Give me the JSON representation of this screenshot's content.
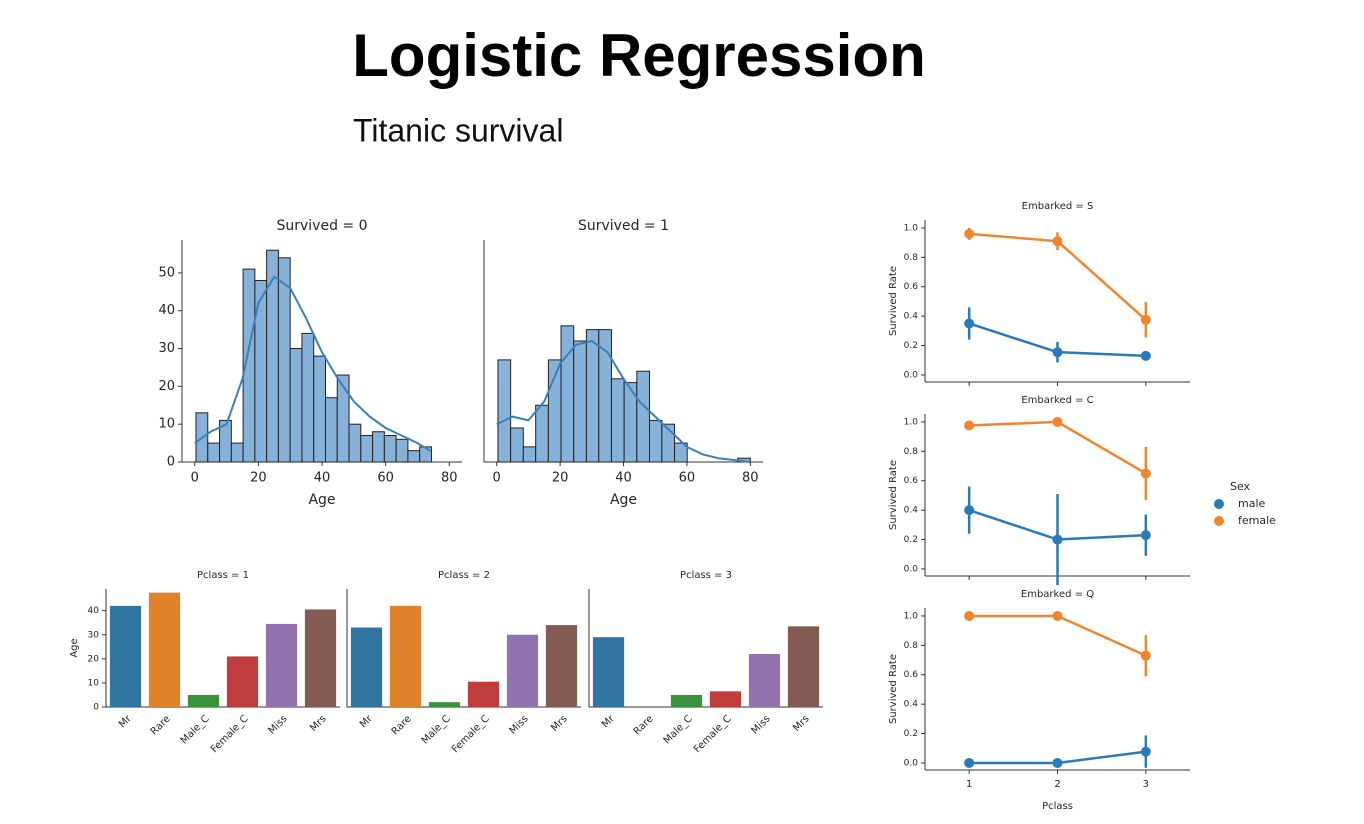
{
  "title": "Logistic Regression",
  "subtitle": "Titanic survival",
  "chart_data": [
    {
      "type": "histogram",
      "title": "Survived = 0",
      "x_label": "Age",
      "color": "#86b2d9",
      "line_color": "#3b80b9",
      "bins": [
        0.4,
        4.1,
        7.8,
        11.5,
        15.2,
        18.9,
        22.6,
        26.3,
        30.0,
        33.7,
        37.4,
        41.1,
        44.8,
        48.5,
        52.2,
        55.9,
        59.6,
        63.3,
        67.0,
        70.7,
        74.4
      ],
      "counts": [
        13,
        5,
        11,
        5,
        51,
        48,
        56,
        54,
        30,
        34,
        28,
        17,
        23,
        10,
        7,
        8,
        7,
        6,
        3,
        4
      ],
      "kde": {
        "x": [
          0,
          5,
          10,
          15,
          20,
          25,
          30,
          35,
          40,
          45,
          50,
          55,
          60,
          65,
          70,
          74
        ],
        "y": [
          5,
          8,
          10,
          22,
          42,
          49,
          46,
          38,
          29,
          22,
          16,
          12,
          9,
          7,
          5,
          3
        ]
      },
      "xlim": [
        -4,
        84
      ],
      "ylim": [
        0,
        58.7
      ],
      "xticks": [
        0,
        20,
        40,
        60,
        80
      ],
      "yticks": [
        0,
        10,
        20,
        30,
        40,
        50
      ]
    },
    {
      "type": "histogram",
      "title": "Survived = 1",
      "x_label": "Age",
      "color": "#86b2d9",
      "line_color": "#3b80b9",
      "bins": [
        0.4,
        4.4,
        8.4,
        12.3,
        16.3,
        20.3,
        24.3,
        28.3,
        32.2,
        36.2,
        40.2,
        44.2,
        48.2,
        52.1,
        56.1,
        60.1,
        64.1,
        68.1,
        72.0,
        76.0,
        80.0
      ],
      "counts": [
        27,
        9,
        4,
        15,
        27,
        36,
        32,
        35,
        35,
        22,
        21,
        24,
        11,
        10,
        5,
        0,
        0,
        0,
        0,
        1
      ],
      "kde": {
        "x": [
          0,
          5,
          10,
          15,
          20,
          25,
          30,
          35,
          40,
          45,
          50,
          55,
          60,
          65,
          70,
          80
        ],
        "y": [
          10,
          12,
          11,
          16,
          26,
          31,
          32,
          29,
          22,
          16,
          12,
          8,
          4,
          2,
          1,
          0
        ]
      },
      "xlim": [
        -4,
        84
      ],
      "ylim": [
        0,
        58.7
      ],
      "xticks": [
        0,
        20,
        40,
        60,
        80
      ]
    },
    {
      "type": "bar",
      "title": "Pclass = 1",
      "y_label": "Age",
      "categories": [
        "Mr",
        "Rare",
        "Male_C",
        "Female_C",
        "Miss",
        "Mrs"
      ],
      "colors": [
        "#3274a1",
        "#e1812c",
        "#3a923a",
        "#c03d3e",
        "#9372b2",
        "#845b53"
      ],
      "values": [
        42,
        47.5,
        5,
        21,
        34.5,
        40.5
      ],
      "ylim": [
        0,
        49
      ],
      "yticks": [
        0,
        10,
        20,
        30,
        40
      ]
    },
    {
      "type": "bar",
      "title": "Pclass = 2",
      "categories": [
        "Mr",
        "Rare",
        "Male_C",
        "Female_C",
        "Miss",
        "Mrs"
      ],
      "colors": [
        "#3274a1",
        "#e1812c",
        "#3a923a",
        "#c03d3e",
        "#9372b2",
        "#845b53"
      ],
      "values": [
        33,
        42,
        2,
        10.5,
        30,
        34
      ],
      "ylim": [
        0,
        49
      ]
    },
    {
      "type": "bar",
      "title": "Pclass = 3",
      "categories": [
        "Mr",
        "Rare",
        "Male_C",
        "Female_C",
        "Miss",
        "Mrs"
      ],
      "colors": [
        "#3274a1",
        "#e1812c",
        "#3a923a",
        "#c03d3e",
        "#9372b2",
        "#845b53"
      ],
      "values": [
        29,
        null,
        5,
        6.5,
        22,
        33.5
      ],
      "ylim": [
        0,
        49
      ]
    },
    {
      "type": "point",
      "title": "Embarked = S",
      "y_label": "Survived Rate",
      "legend_title": "Sex",
      "series": [
        {
          "name": "male",
          "color": "#2a7ab9",
          "values": [
            0.35,
            0.155,
            0.13
          ],
          "errors": [
            0.11,
            0.07,
            0.03
          ]
        },
        {
          "name": "female",
          "color": "#f0852d",
          "values": [
            0.96,
            0.91,
            0.375
          ],
          "errors": [
            0.04,
            0.06,
            0.12
          ]
        }
      ],
      "ylim": [
        -0.048,
        1.054
      ],
      "yticks": [
        {
          "value": 0,
          "label": "0.0"
        },
        {
          "value": 0.2,
          "label": "0.2"
        },
        {
          "value": 0.4,
          "label": "0.4"
        },
        {
          "value": 0.6,
          "label": "0.6"
        },
        {
          "value": 0.8,
          "label": "0.8"
        },
        {
          "value": 1,
          "label": "1.0"
        }
      ]
    },
    {
      "type": "point",
      "title": "Embarked = C",
      "y_label": "Survived Rate",
      "series": [
        {
          "color": "#2a7ab9",
          "values": [
            0.4,
            0.2,
            0.23
          ],
          "errors": [
            0.16,
            0.31,
            0.14
          ]
        },
        {
          "color": "#f0852d",
          "values": [
            0.976,
            1,
            0.65
          ],
          "errors": [
            0.03,
            0,
            0.18
          ]
        }
      ],
      "ylim": [
        -0.048,
        1.054
      ],
      "yticks": [
        {
          "value": 0,
          "label": "0.0"
        },
        {
          "value": 0.2,
          "label": "0.2"
        },
        {
          "value": 0.4,
          "label": "0.4"
        },
        {
          "value": 0.6,
          "label": "0.6"
        },
        {
          "value": 0.8,
          "label": "0.8"
        },
        {
          "value": 1,
          "label": "1.0"
        }
      ]
    },
    {
      "type": "point",
      "title": "Embarked = Q",
      "y_label": "Survived Rate",
      "x_label": "Pclass",
      "categories": [
        "1",
        "2",
        "3"
      ],
      "series": [
        {
          "color": "#2a7ab9",
          "values": [
            0,
            0,
            0.077
          ],
          "errors": [
            0,
            0,
            0.11
          ]
        },
        {
          "color": "#f0852d",
          "values": [
            1,
            1,
            0.73
          ],
          "errors": [
            0,
            0,
            0.14
          ]
        }
      ],
      "ylim": [
        -0.048,
        1.054
      ],
      "yticks": [
        {
          "value": 0,
          "label": "0.0"
        },
        {
          "value": 0.2,
          "label": "0.2"
        },
        {
          "value": 0.4,
          "label": "0.4"
        },
        {
          "value": 0.6,
          "label": "0.6"
        },
        {
          "value": 0.8,
          "label": "0.8"
        },
        {
          "value": 1,
          "label": "1.0"
        }
      ]
    }
  ]
}
